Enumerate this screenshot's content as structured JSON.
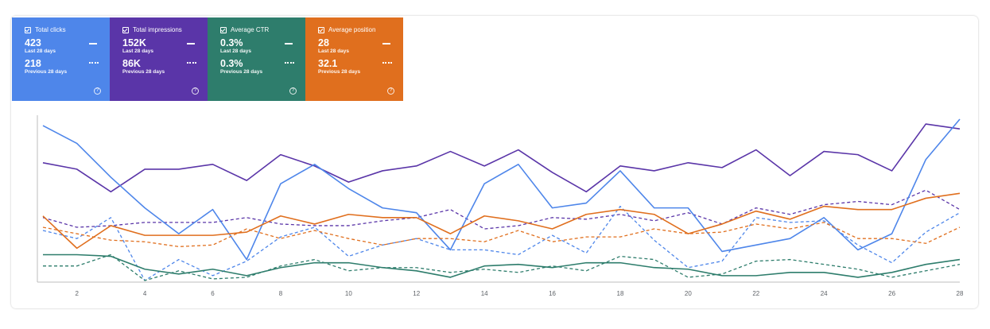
{
  "metrics": [
    {
      "key": "clicks",
      "label": "Total clicks",
      "current": "423",
      "current_period": "Last 28 days",
      "previous": "218",
      "previous_period": "Previous 28 days",
      "color": "#4e86ea"
    },
    {
      "key": "impressions",
      "label": "Total impressions",
      "current": "152K",
      "current_period": "Last 28 days",
      "previous": "86K",
      "previous_period": "Previous 28 days",
      "color": "#5a35a8"
    },
    {
      "key": "ctr",
      "label": "Average CTR",
      "current": "0.3%",
      "current_period": "Last 28 days",
      "previous": "0.3%",
      "previous_period": "Previous 28 days",
      "color": "#2e7d6c"
    },
    {
      "key": "position",
      "label": "Average position",
      "current": "28",
      "current_period": "Last 28 days",
      "previous": "32.1",
      "previous_period": "Previous 28 days",
      "color": "#e06f1e"
    }
  ],
  "chart_data": {
    "type": "line",
    "title": "",
    "xlabel": "",
    "ylabel": "",
    "x": [
      1,
      2,
      3,
      4,
      5,
      6,
      7,
      8,
      9,
      10,
      11,
      12,
      13,
      14,
      15,
      16,
      17,
      18,
      19,
      20,
      21,
      22,
      23,
      24,
      25,
      26,
      27,
      28
    ],
    "x_ticks": [
      2,
      4,
      6,
      8,
      10,
      12,
      14,
      16,
      18,
      20,
      22,
      24,
      26,
      28
    ],
    "ylim": [
      0,
      100
    ],
    "grid": false,
    "series": [
      {
        "name": "Total impressions (Last 28 days)",
        "style": "solid",
        "color": "#5a35a8",
        "values": [
          74,
          70,
          56,
          70,
          70,
          73,
          63,
          79,
          72,
          62,
          69,
          72,
          81,
          72,
          82,
          68,
          56,
          72,
          69,
          74,
          71,
          82,
          66,
          81,
          79,
          69,
          98,
          95
        ]
      },
      {
        "name": "Total impressions (Previous 28 days)",
        "style": "dashed",
        "color": "#5a35a8",
        "values": [
          40,
          34,
          35,
          37,
          37,
          37,
          40,
          36,
          35,
          35,
          38,
          40,
          45,
          33,
          35,
          40,
          39,
          42,
          38,
          43,
          36,
          46,
          42,
          48,
          50,
          48,
          57,
          45
        ]
      },
      {
        "name": "Total clicks (Last 28 days)",
        "style": "solid",
        "color": "#4e86ea",
        "values": [
          97,
          86,
          65,
          46,
          30,
          45,
          14,
          61,
          73,
          58,
          46,
          43,
          20,
          61,
          73,
          46,
          49,
          69,
          46,
          46,
          19,
          23,
          27,
          40,
          20,
          30,
          76,
          101
        ]
      },
      {
        "name": "Total clicks (Previous 28 days)",
        "style": "dashed",
        "color": "#4e86ea",
        "values": [
          32,
          27,
          40,
          1,
          14,
          4,
          13,
          28,
          34,
          16,
          23,
          27,
          20,
          20,
          17,
          29,
          18,
          47,
          26,
          9,
          13,
          40,
          37,
          38,
          23,
          12,
          31,
          43
        ]
      },
      {
        "name": "Average position (Last 28 days)",
        "style": "solid",
        "color": "#e06f1e",
        "values": [
          41,
          21,
          35,
          29,
          29,
          29,
          31,
          41,
          36,
          42,
          40,
          40,
          30,
          41,
          38,
          33,
          42,
          45,
          42,
          30,
          36,
          44,
          39,
          47,
          45,
          45,
          52,
          55
        ]
      },
      {
        "name": "Average position (Previous 28 days)",
        "style": "dashed",
        "color": "#e06f1e",
        "values": [
          34,
          30,
          26,
          25,
          22,
          23,
          33,
          27,
          32,
          27,
          23,
          27,
          27,
          25,
          32,
          25,
          28,
          28,
          33,
          30,
          31,
          36,
          33,
          37,
          27,
          27,
          24,
          34
        ]
      },
      {
        "name": "Average CTR (Last 28 days)",
        "style": "solid",
        "color": "#2e7d6c",
        "values": [
          17,
          17,
          16,
          8,
          5,
          8,
          4,
          9,
          12,
          12,
          9,
          7,
          3,
          10,
          11,
          9,
          12,
          12,
          9,
          8,
          4,
          4,
          6,
          6,
          3,
          6,
          11,
          14
        ]
      },
      {
        "name": "Average CTR (Previous 28 days)",
        "style": "dashed",
        "color": "#2e7d6c",
        "values": [
          10,
          10,
          17,
          1,
          7,
          2,
          3,
          10,
          14,
          7,
          9,
          9,
          6,
          8,
          6,
          10,
          7,
          16,
          14,
          3,
          5,
          13,
          14,
          11,
          8,
          3,
          7,
          11
        ]
      }
    ]
  }
}
